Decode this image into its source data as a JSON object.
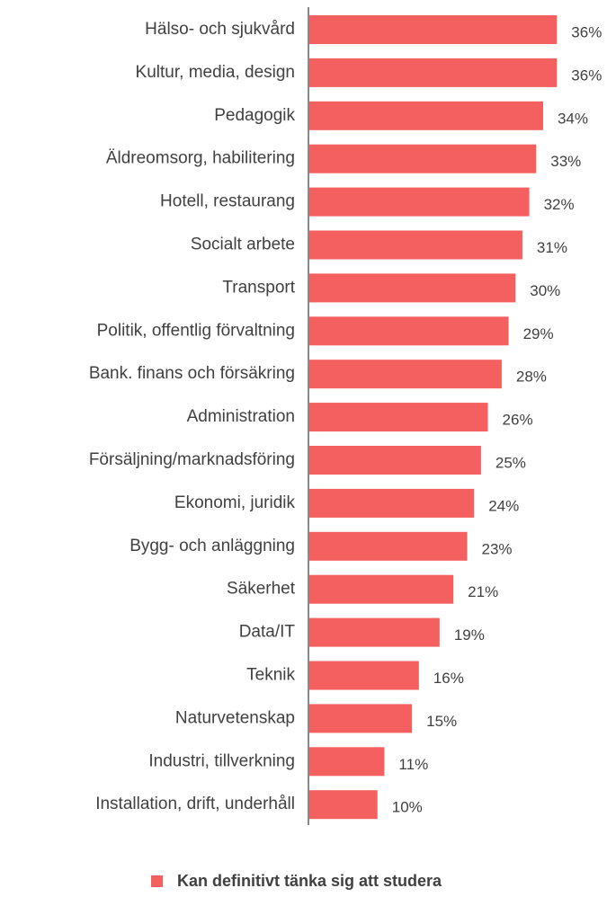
{
  "chart_data": {
    "type": "hbar",
    "categories": [
      "Hälso- och sjukvård",
      "Kultur, media, design",
      "Pedagogik",
      "Äldreomsorg, habilitering",
      "Hotell, restaurang",
      "Socialt arbete",
      "Transport",
      "Politik, offentlig förvaltning",
      "Bank. finans och försäkring",
      "Administration",
      "Försäljning/marknadsföring",
      "Ekonomi, juridik",
      "Bygg- och anläggning",
      "Säkerhet",
      "Data/IT",
      "Teknik",
      "Naturvetenskap",
      "Industri, tillverkning",
      "Installation, drift, underhåll"
    ],
    "series": [
      {
        "name": "Kan definitivt tänka sig att studera",
        "color": "#f45f5f",
        "values": [
          36,
          36,
          34,
          33,
          32,
          31,
          30,
          29,
          28,
          26,
          25,
          24,
          23,
          21,
          19,
          16,
          15,
          11,
          10
        ],
        "value_labels": [
          "36%",
          "36%",
          "34%",
          "33%",
          "32%",
          "31%",
          "30%",
          "29%",
          "28%",
          "26%",
          "25%",
          "24%",
          "23%",
          "21%",
          "19%",
          "16%",
          "15%",
          "11%",
          "10%"
        ]
      }
    ],
    "xlim": [
      0,
      40
    ],
    "legend": "bottom"
  }
}
